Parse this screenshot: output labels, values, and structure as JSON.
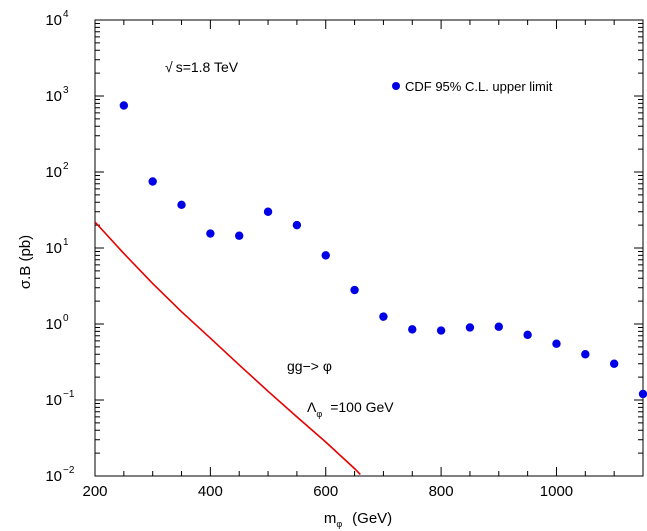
{
  "chart_data": {
    "type": "scatter",
    "xlabel_main": "m",
    "xlabel_sub": "φ",
    "xlabel_unit": "(GeV)",
    "ylabel": "σ.B  (pb)",
    "xlim": [
      200,
      1150
    ],
    "ylim": [
      0.01,
      10000
    ],
    "yscale": "log",
    "x_ticks": [
      200,
      400,
      600,
      800,
      1000
    ],
    "y_tick_exponents": [
      -2,
      -1,
      0,
      1,
      2,
      3,
      4
    ],
    "y_tick_base": "10",
    "grid": false,
    "legend_position": "top-right",
    "series": [
      {
        "name": "CDF 95% C.L. upper limit",
        "kind": "points",
        "color": "#0000e6",
        "x": [
          250,
          300,
          350,
          400,
          450,
          500,
          550,
          600,
          650,
          700,
          750,
          800,
          850,
          900,
          950,
          1000,
          1050,
          1100,
          1150
        ],
        "y": [
          750,
          75,
          37,
          15.5,
          14.5,
          30,
          20,
          8,
          2.8,
          1.25,
          0.85,
          0.82,
          0.9,
          0.92,
          0.72,
          0.55,
          0.4,
          0.3,
          0.12
        ]
      },
      {
        "name": "",
        "kind": "line",
        "color": "#e60000",
        "x": [
          200,
          250,
          300,
          350,
          400,
          450,
          500,
          550,
          600,
          650,
          660
        ],
        "y": [
          22,
          8.5,
          3.4,
          1.45,
          0.65,
          0.29,
          0.13,
          0.06,
          0.028,
          0.0125,
          0.0105
        ]
      }
    ],
    "annotations": {
      "energy_root": "√",
      "energy_text": "s=1.8 TeV",
      "process": "gg−> φ",
      "lambda_symbol": "Λ",
      "lambda_sub": "φ",
      "lambda_value": "=100 GeV"
    }
  }
}
